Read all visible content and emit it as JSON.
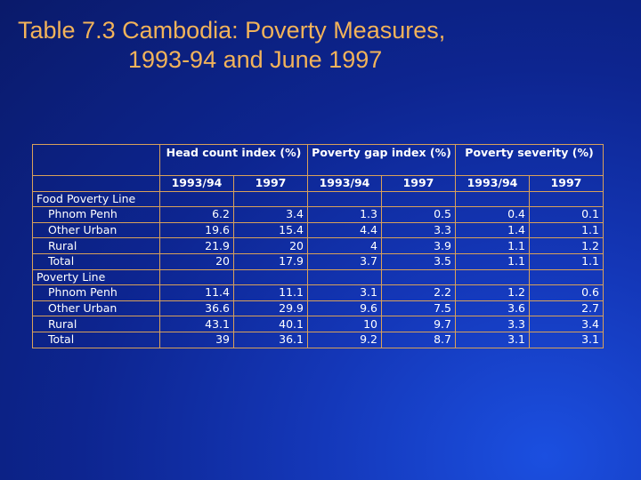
{
  "title": {
    "line1": "Table 7.3 Cambodia: Poverty Measures,",
    "line2": "1993-94 and June 1997"
  },
  "table": {
    "groups": [
      "Head count index (%)",
      "Poverty gap index (%)",
      "Poverty severity (%)"
    ],
    "subheaders": [
      "1993/94",
      "1997",
      "1993/94",
      "1997",
      "1993/94",
      "1997"
    ],
    "sections": [
      {
        "label": "Food Poverty Line",
        "rows": [
          {
            "label": "Phnom Penh",
            "values": [
              "6.2",
              "3.4",
              "1.3",
              "0.5",
              "0.4",
              "0.1"
            ]
          },
          {
            "label": "Other Urban",
            "values": [
              "19.6",
              "15.4",
              "4.4",
              "3.3",
              "1.4",
              "1.1"
            ]
          },
          {
            "label": "Rural",
            "values": [
              "21.9",
              "20",
              "4",
              "3.9",
              "1.1",
              "1.2"
            ]
          },
          {
            "label": "Total",
            "values": [
              "20",
              "17.9",
              "3.7",
              "3.5",
              "1.1",
              "1.1"
            ]
          }
        ]
      },
      {
        "label": "Poverty Line",
        "rows": [
          {
            "label": "Phnom Penh",
            "values": [
              "11.4",
              "11.1",
              "3.1",
              "2.2",
              "1.2",
              "0.6"
            ]
          },
          {
            "label": "Other Urban",
            "values": [
              "36.6",
              "29.9",
              "9.6",
              "7.5",
              "3.6",
              "2.7"
            ]
          },
          {
            "label": "Rural",
            "values": [
              "43.1",
              "40.1",
              "10",
              "9.7",
              "3.3",
              "3.4"
            ]
          },
          {
            "label": "Total",
            "values": [
              "39",
              "36.1",
              "9.2",
              "8.7",
              "3.1",
              "3.1"
            ]
          }
        ]
      }
    ]
  }
}
